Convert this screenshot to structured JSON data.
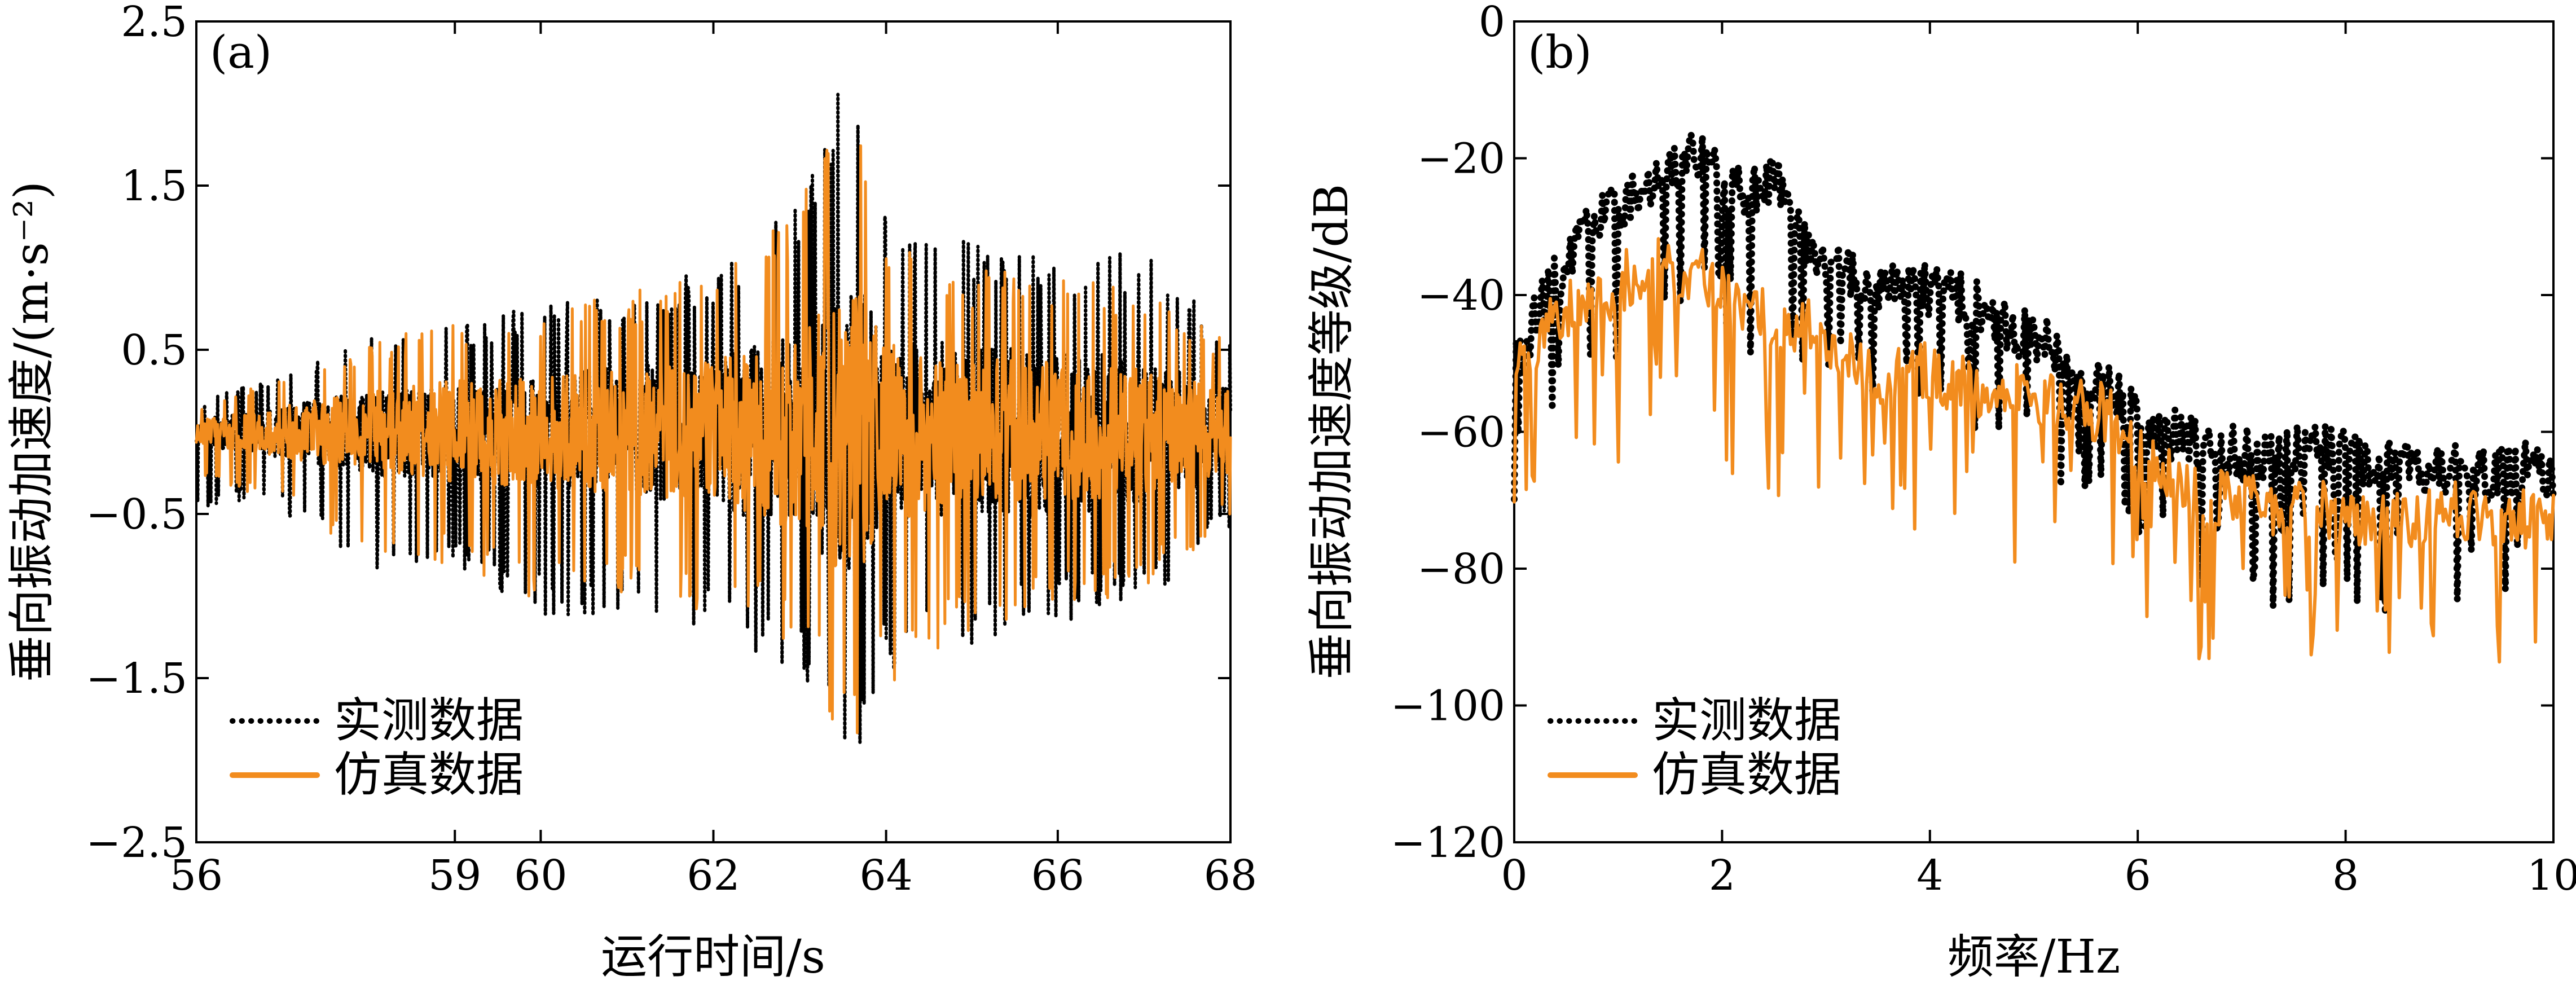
{
  "chart_data": [
    {
      "type": "line",
      "panel_label": "(a)",
      "xlabel": "运行时间/s",
      "ylabel": "垂向振动加速度/(m·s⁻²)",
      "xlim": [
        56,
        68
      ],
      "ylim": [
        -2.5,
        2.5
      ],
      "x_ticks": [
        56,
        59,
        60,
        62,
        64,
        66,
        68
      ],
      "x_tick_labels": [
        "56",
        "59",
        "60",
        "62",
        "64",
        "66",
        "68"
      ],
      "y_ticks": [
        2.5,
        1.5,
        0.5,
        -0.5,
        -1.5,
        -2.5
      ],
      "y_tick_labels": [
        "2.5",
        "1.5",
        "0.5",
        "−0.5",
        "−1.5",
        "−2.5"
      ],
      "legend": {
        "position": "bottom-left",
        "entries": [
          "实测数据",
          "仿真数据"
        ]
      },
      "series": [
        {
          "name": "实测数据",
          "style": "dotted",
          "color": "#000000",
          "envelope_x": [
            56,
            57,
            58,
            59,
            60,
            61,
            62,
            63,
            63.4,
            63.7,
            64,
            65,
            66,
            67,
            68
          ],
          "envelope_upper": [
            0.2,
            0.35,
            0.6,
            0.65,
            0.8,
            0.9,
            1.0,
            1.4,
            2.1,
            2.1,
            1.3,
            1.2,
            1.1,
            1.1,
            0.6
          ],
          "envelope_lower": [
            -0.45,
            -0.5,
            -0.85,
            -0.8,
            -1.15,
            -1.1,
            -1.2,
            -1.5,
            -2.0,
            -2.0,
            -1.5,
            -1.3,
            -1.2,
            -1.05,
            -0.6
          ]
        },
        {
          "name": "仿真数据",
          "style": "solid",
          "color": "#F28C1E",
          "envelope_x": [
            56,
            57,
            58,
            59,
            60,
            61,
            62,
            63,
            63.4,
            63.7,
            64,
            65,
            66,
            67,
            68
          ],
          "envelope_upper": [
            0.15,
            0.35,
            0.55,
            0.7,
            0.75,
            0.85,
            0.95,
            1.45,
            1.9,
            1.9,
            1.2,
            1.0,
            0.95,
            0.85,
            0.55
          ],
          "envelope_lower": [
            -0.25,
            -0.45,
            -0.85,
            -0.8,
            -1.05,
            -1.0,
            -1.1,
            -1.3,
            -1.85,
            -1.85,
            -1.6,
            -1.2,
            -1.1,
            -0.95,
            -0.55
          ]
        }
      ]
    },
    {
      "type": "line",
      "panel_label": "(b)",
      "xlabel": "频率/Hz",
      "ylabel": "垂向振动加速度等级/dB",
      "xlim": [
        0,
        10
      ],
      "ylim": [
        -120,
        0
      ],
      "x_ticks": [
        0,
        2,
        4,
        6,
        8,
        10
      ],
      "x_tick_labels": [
        "0",
        "2",
        "4",
        "6",
        "8",
        "10"
      ],
      "y_ticks": [
        0,
        -20,
        -40,
        -60,
        -80,
        -100,
        -120
      ],
      "y_tick_labels": [
        "0",
        "−20",
        "−40",
        "−60",
        "−80",
        "−100",
        "−120"
      ],
      "legend": {
        "position": "bottom-left",
        "entries": [
          "实测数据",
          "仿真数据"
        ]
      },
      "series": [
        {
          "name": "实测数据",
          "style": "dotted",
          "color": "#000000",
          "x": [
            0,
            0.25,
            0.5,
            0.75,
            1.0,
            1.25,
            1.5,
            1.75,
            2.0,
            2.25,
            2.5,
            2.75,
            3.0,
            3.25,
            3.5,
            3.75,
            4.0,
            4.25,
            4.5,
            4.75,
            5.0,
            5.25,
            5.5,
            5.75,
            6.0,
            6.25,
            6.5,
            6.75,
            7.0,
            7.25,
            7.5,
            7.75,
            8.0,
            8.25,
            8.5,
            8.75,
            9.0,
            9.25,
            9.5,
            9.75,
            10.0
          ],
          "y": [
            -52,
            -43,
            -36,
            -31,
            -28,
            -25,
            -22,
            -20,
            -24,
            -27,
            -23,
            -31,
            -36,
            -38,
            -39,
            -40,
            -40,
            -41,
            -43,
            -45,
            -47,
            -49,
            -52,
            -55,
            -58,
            -61,
            -62,
            -63,
            -64,
            -64,
            -64,
            -63,
            -64,
            -65,
            -66,
            -66,
            -66,
            -67,
            -67,
            -66,
            -67
          ]
        },
        {
          "name": "仿真数据",
          "style": "solid",
          "color": "#F28C1E",
          "x": [
            0,
            0.25,
            0.5,
            0.75,
            1.0,
            1.25,
            1.5,
            1.75,
            2.0,
            2.25,
            2.5,
            2.75,
            3.0,
            3.25,
            3.5,
            3.75,
            4.0,
            4.25,
            4.5,
            4.75,
            5.0,
            5.25,
            5.5,
            5.75,
            6.0,
            6.25,
            6.5,
            6.75,
            7.0,
            7.25,
            7.5,
            7.75,
            8.0,
            8.25,
            8.5,
            8.75,
            9.0,
            9.25,
            9.5,
            9.75,
            10.0
          ],
          "y": [
            -50,
            -47,
            -43,
            -41,
            -39,
            -36,
            -36,
            -37,
            -40,
            -43,
            -44,
            -45,
            -47,
            -50,
            -52,
            -51,
            -52,
            -53,
            -54,
            -54,
            -55,
            -56,
            -57,
            -58,
            -64,
            -67,
            -69,
            -70,
            -70,
            -71,
            -72,
            -72,
            -73,
            -73,
            -73,
            -73,
            -72,
            -73,
            -74,
            -73,
            -74
          ]
        }
      ]
    }
  ]
}
